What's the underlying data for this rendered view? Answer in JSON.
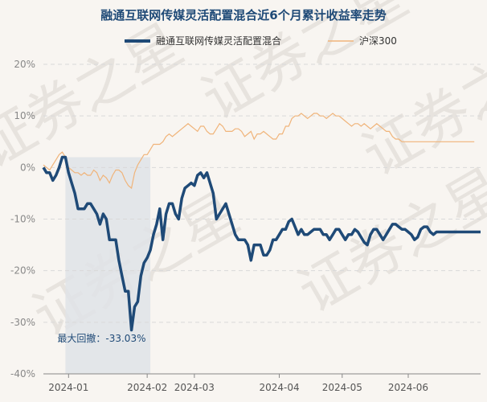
{
  "chart_data": {
    "type": "line",
    "title": "融通互联网传媒灵活配置混合近6个月累计收益率走势",
    "watermark": "证券之星",
    "ylim": [
      -40,
      20
    ],
    "yticks": [
      20,
      10,
      0,
      -10,
      -20,
      -30,
      -40
    ],
    "ytick_labels": [
      "20%",
      "10%",
      "0%",
      "-10%",
      "-20%",
      "-30%",
      "-40%"
    ],
    "xlim": [
      0,
      139
    ],
    "xticks": [
      {
        "x": 8,
        "label": "2024-01"
      },
      {
        "x": 33,
        "label": "2024-02"
      },
      {
        "x": 48,
        "label": "2024-03"
      },
      {
        "x": 75,
        "label": "2024-04"
      },
      {
        "x": 95,
        "label": "2024-05"
      },
      {
        "x": 116,
        "label": "2024-06"
      }
    ],
    "colors": {
      "fund": "#1f4a77",
      "index": "#f0b47a",
      "drawdown": "#dfe3e8",
      "grid": "#d9d9d9",
      "axis": "#888888"
    },
    "annotation": {
      "label": "最大回撤：-33.03%",
      "start_x": 7,
      "end_x": 34
    },
    "series": [
      {
        "name": "融通互联网传媒灵活配置混合",
        "values": [
          0,
          -1,
          -1,
          -2.5,
          -1.5,
          0,
          2,
          2,
          -1,
          -3,
          -5,
          -8,
          -8,
          -8,
          -7,
          -7,
          -8,
          -9,
          -11,
          -9,
          -10,
          -14,
          -14,
          -14,
          -18,
          -21,
          -24,
          -24,
          -31.5,
          -27,
          -26,
          -21,
          -18.5,
          -17.5,
          -16,
          -13,
          -11,
          -8,
          -14,
          -9,
          -7,
          -7,
          -9,
          -10,
          -6,
          -4,
          -3.5,
          -3,
          -3.5,
          -1.5,
          -1,
          -2,
          -1,
          -3,
          -5,
          -10,
          -9,
          -8,
          -7,
          -9,
          -11,
          -13,
          -14,
          -14,
          -14,
          -15,
          -18,
          -15,
          -15,
          -15,
          -17,
          -17,
          -16,
          -14,
          -14,
          -13,
          -12,
          -12,
          -10.5,
          -10,
          -11.5,
          -13,
          -12,
          -13,
          -13,
          -12.5,
          -12,
          -12,
          -12,
          -13,
          -13,
          -14,
          -13,
          -12,
          -12,
          -13,
          -14,
          -13,
          -13,
          -12,
          -12.5,
          -13.5,
          -14.5,
          -15,
          -13,
          -12,
          -12,
          -13,
          -14,
          -13,
          -12,
          -11,
          -11,
          -11.5,
          -12,
          -12,
          -12.5,
          -13,
          -14,
          -13.5,
          -12,
          -11.5,
          -11.5,
          -12.5,
          -13,
          -12.5,
          -12.5,
          -12.5,
          -12.5,
          -12.5,
          -12.5,
          -12.5,
          -12.5,
          -12.5,
          -12.5,
          -12.5,
          -12.5,
          -12.5,
          -12.5,
          -12.5
        ],
        "color": "#1f4a77"
      },
      {
        "name": "沪深300",
        "values": [
          0.5,
          0,
          -0.5,
          0.5,
          1.5,
          2.5,
          3,
          2,
          0,
          -0.5,
          -1,
          -1,
          -1.5,
          -1,
          -1.5,
          -1.5,
          -0.5,
          -1,
          -2.5,
          -1.5,
          -2,
          -3,
          -1.5,
          -0.5,
          -0.5,
          -1,
          -2.5,
          -3.5,
          -4,
          -1,
          0.5,
          1.5,
          2.5,
          2.5,
          3.5,
          4.5,
          4.5,
          4.5,
          5,
          6,
          6.5,
          6,
          6.5,
          7,
          7.5,
          8,
          8.5,
          8,
          7.5,
          7,
          8,
          8,
          7,
          6.5,
          6.5,
          7.5,
          8.5,
          8,
          7,
          7,
          7,
          7.5,
          7.5,
          7,
          6,
          6.5,
          7,
          5.5,
          6.5,
          6.5,
          7,
          6.5,
          6,
          5.5,
          5.5,
          6.5,
          6.5,
          8,
          8,
          9.5,
          10,
          10,
          10.5,
          10,
          9.5,
          10,
          10.5,
          10.5,
          10,
          10,
          9.5,
          10,
          10.5,
          10,
          10,
          9.5,
          9,
          8.5,
          8,
          8.5,
          8.5,
          8,
          8.5,
          8,
          7.5,
          8,
          8.5,
          8,
          7.5,
          7,
          7,
          6,
          5.5,
          5.5,
          5,
          5,
          5,
          5,
          5,
          5,
          5,
          5,
          5,
          5,
          5,
          5,
          5,
          5,
          5,
          5,
          5,
          5,
          5,
          5,
          5,
          5,
          5,
          5
        ],
        "color": "#f0b47a"
      }
    ]
  }
}
